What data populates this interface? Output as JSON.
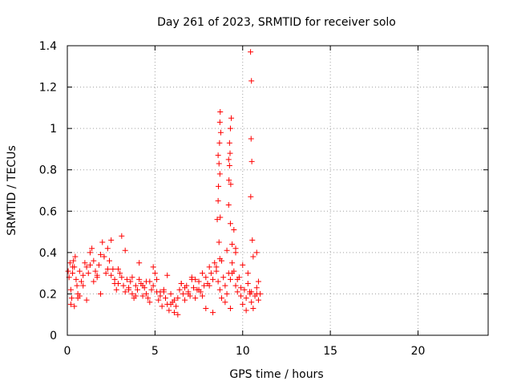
{
  "chart_data": {
    "type": "scatter",
    "title": "Day 261 of 2023, SRMTID for receiver solo",
    "xlabel": "GPS time / hours",
    "ylabel": "SRMTID / TECUs",
    "xlim": [
      0,
      24
    ],
    "ylim": [
      0,
      1.4
    ],
    "xticks": [
      0,
      5,
      10,
      15,
      20
    ],
    "xtick_labels": [
      "0",
      "5",
      "10",
      "15",
      "20"
    ],
    "yticks": [
      0,
      0.2,
      0.4,
      0.6,
      0.8,
      1,
      1.2,
      1.4
    ],
    "ytick_labels": [
      "0",
      "0.2",
      "0.4",
      "0.6",
      "0.8",
      "1",
      "1.2",
      "1.4"
    ],
    "grid": true,
    "marker": "plus",
    "color": "#ff0000",
    "series": [
      {
        "name": "SRMTID",
        "x": [
          0.05,
          0.1,
          0.15,
          0.2,
          0.25,
          0.3,
          0.35,
          0.4,
          0.45,
          0.5,
          0.55,
          0.6,
          0.7,
          0.8,
          0.9,
          1.0,
          1.1,
          1.2,
          1.3,
          1.4,
          1.5,
          1.6,
          1.7,
          1.8,
          1.9,
          2.0,
          2.1,
          2.2,
          2.3,
          2.4,
          2.5,
          2.6,
          2.7,
          2.8,
          2.9,
          3.0,
          3.1,
          3.2,
          3.3,
          3.4,
          3.5,
          3.6,
          3.7,
          3.8,
          3.9,
          4.0,
          4.1,
          4.2,
          4.3,
          4.4,
          4.5,
          4.6,
          4.7,
          4.8,
          4.9,
          5.0,
          5.1,
          5.2,
          5.3,
          5.4,
          5.5,
          5.6,
          5.7,
          5.8,
          5.9,
          6.0,
          6.1,
          6.2,
          6.3,
          6.4,
          6.5,
          6.6,
          6.7,
          6.8,
          6.9,
          7.0,
          7.1,
          7.2,
          7.3,
          7.4,
          7.5,
          7.6,
          7.7,
          7.8,
          7.9,
          8.0,
          8.1,
          8.2,
          8.3,
          8.4,
          8.5,
          8.6,
          8.7,
          8.8,
          8.9,
          9.0,
          9.1,
          9.2,
          9.3,
          9.4,
          9.5,
          9.6,
          9.7,
          9.8,
          9.9,
          10.0,
          10.1,
          10.2,
          10.3,
          10.4,
          10.5,
          10.6,
          10.7,
          10.8,
          10.9,
          11.0,
          0.2,
          0.4,
          0.6,
          0.9,
          1.3,
          1.7,
          2.1,
          2.5,
          2.9,
          3.3,
          3.7,
          4.1,
          4.5,
          4.9,
          5.3,
          5.7,
          6.1,
          6.5,
          6.9,
          7.3,
          7.7,
          8.1,
          8.5,
          8.8,
          9.1,
          9.4,
          9.7,
          10.0,
          10.3,
          10.6,
          10.9,
          0.3,
          0.7,
          1.1,
          1.5,
          1.9,
          2.3,
          2.7,
          3.1,
          3.5,
          3.9,
          4.3,
          4.7,
          5.1,
          5.5,
          5.9,
          6.3,
          6.7,
          7.1,
          7.5,
          7.9,
          8.3,
          8.7,
          9.0,
          9.3,
          9.6,
          9.9,
          10.2,
          10.5,
          10.8,
          8.55,
          8.6,
          8.62,
          8.65,
          8.68,
          8.7,
          8.72,
          8.75,
          8.6,
          8.65,
          8.7,
          8.72,
          9.2,
          9.25,
          9.3,
          9.22,
          9.28,
          9.32,
          9.35,
          9.25,
          9.3,
          9.2,
          9.4,
          9.5,
          9.6,
          10.45,
          10.5,
          10.48,
          10.52,
          10.46,
          10.55,
          10.42,
          10.8
        ],
        "y": [
          0.31,
          0.28,
          0.35,
          0.22,
          0.18,
          0.3,
          0.36,
          0.33,
          0.38,
          0.27,
          0.24,
          0.2,
          0.31,
          0.26,
          0.29,
          0.35,
          0.33,
          0.3,
          0.4,
          0.42,
          0.36,
          0.31,
          0.28,
          0.34,
          0.39,
          0.45,
          0.38,
          0.3,
          0.42,
          0.36,
          0.29,
          0.32,
          0.27,
          0.22,
          0.25,
          0.3,
          0.28,
          0.24,
          0.21,
          0.27,
          0.23,
          0.26,
          0.2,
          0.18,
          0.24,
          0.22,
          0.27,
          0.25,
          0.19,
          0.23,
          0.2,
          0.18,
          0.26,
          0.22,
          0.24,
          0.3,
          0.21,
          0.17,
          0.19,
          0.14,
          0.22,
          0.18,
          0.15,
          0.12,
          0.2,
          0.16,
          0.11,
          0.14,
          0.18,
          0.22,
          0.25,
          0.2,
          0.17,
          0.24,
          0.21,
          0.19,
          0.27,
          0.23,
          0.18,
          0.22,
          0.26,
          0.21,
          0.19,
          0.24,
          0.28,
          0.25,
          0.33,
          0.3,
          0.27,
          0.35,
          0.31,
          0.26,
          0.22,
          0.18,
          0.28,
          0.24,
          0.2,
          0.3,
          0.27,
          0.35,
          0.31,
          0.24,
          0.21,
          0.28,
          0.19,
          0.15,
          0.22,
          0.18,
          0.25,
          0.21,
          0.16,
          0.13,
          0.19,
          0.23,
          0.17,
          0.2,
          0.15,
          0.14,
          0.18,
          0.24,
          0.34,
          0.29,
          0.38,
          0.46,
          0.32,
          0.41,
          0.28,
          0.35,
          0.26,
          0.33,
          0.21,
          0.29,
          0.17,
          0.25,
          0.2,
          0.27,
          0.3,
          0.24,
          0.33,
          0.36,
          0.41,
          0.3,
          0.27,
          0.34,
          0.3,
          0.38,
          0.26,
          0.33,
          0.19,
          0.17,
          0.26,
          0.2,
          0.32,
          0.25,
          0.48,
          0.22,
          0.19,
          0.24,
          0.16,
          0.27,
          0.21,
          0.15,
          0.1,
          0.23,
          0.28,
          0.22,
          0.13,
          0.11,
          0.37,
          0.16,
          0.13,
          0.42,
          0.23,
          0.12,
          0.21,
          0.2,
          0.56,
          0.65,
          0.72,
          0.83,
          0.93,
          1.03,
          1.08,
          0.98,
          0.87,
          0.45,
          0.78,
          0.57,
          0.85,
          0.93,
          1.0,
          0.75,
          0.88,
          0.73,
          1.05,
          0.82,
          0.54,
          0.63,
          0.44,
          0.51,
          0.4,
          1.37,
          1.23,
          0.95,
          0.84,
          0.67,
          0.46,
          0.2,
          0.4
        ]
      }
    ]
  }
}
